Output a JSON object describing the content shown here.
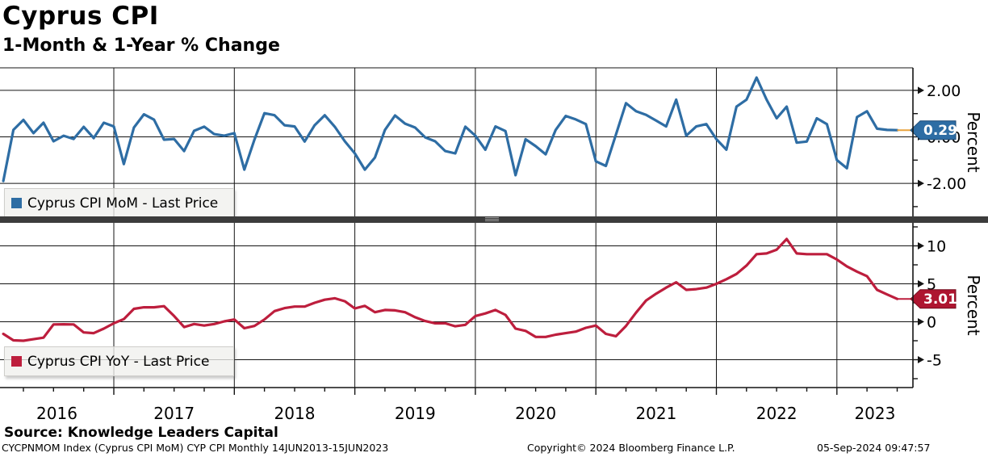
{
  "header": {
    "title": "Cyprus CPI",
    "subtitle": "1-Month & 1-Year % Change"
  },
  "source_line": "Source: Knowledge Leaders Capital",
  "footer": {
    "left": "CYCPNMOM Index (Cyprus CPI MoM) CYP CPI  Monthly 14JUN2013-15JUN2023",
    "center": "Copyright© 2024 Bloomberg Finance L.P.",
    "right": "05-Sep-2024 09:47:57"
  },
  "axis": {
    "years": [
      "2016",
      "2017",
      "2018",
      "2019",
      "2020",
      "2021",
      "2022",
      "2023"
    ]
  },
  "chart_data": [
    {
      "type": "line",
      "title": "Cyprus CPI MoM - Last Price",
      "series_name": "Cyprus CPI MoM",
      "color": "#2e6da4",
      "badge_color": "#2e6da4",
      "badge_border": "#1c4a75",
      "connector_color": "#e8a33d",
      "last_price": 0.29,
      "last_price_label": "0.29",
      "ylabel": "Percent",
      "ylim": [
        -3.42,
        2.97
      ],
      "ytick_values": [
        2,
        0,
        -2
      ],
      "ytick_labels": [
        "2.00",
        "0.00",
        "-2.00"
      ],
      "yticks_minor": [
        1,
        -1,
        -3
      ],
      "x_start": "2016-01",
      "x_end": "2023-06",
      "x_freq": "monthly",
      "values": [
        -1.9,
        0.3,
        0.73,
        0.16,
        0.61,
        -0.19,
        0.05,
        -0.09,
        0.43,
        -0.05,
        0.61,
        0.45,
        -1.17,
        0.4,
        0.97,
        0.74,
        -0.12,
        -0.09,
        -0.61,
        0.26,
        0.44,
        0.12,
        0.05,
        0.16,
        -1.41,
        -0.12,
        1.02,
        0.93,
        0.5,
        0.45,
        -0.2,
        0.5,
        0.93,
        0.44,
        -0.19,
        -0.71,
        -1.41,
        -0.89,
        0.3,
        0.92,
        0.57,
        0.4,
        -0.02,
        -0.19,
        -0.61,
        -0.71,
        0.44,
        0.05,
        -0.55,
        0.45,
        0.25,
        -1.65,
        -0.1,
        -0.4,
        -0.75,
        0.3,
        0.9,
        0.75,
        0.55,
        -1.05,
        -1.25,
        0.1,
        1.45,
        1.1,
        0.95,
        0.7,
        0.45,
        1.6,
        0.05,
        0.45,
        0.55,
        -0.1,
        -0.55,
        1.3,
        1.6,
        2.55,
        1.6,
        0.8,
        1.3,
        -0.25,
        -0.2,
        0.8,
        0.55,
        -1.0,
        -1.35,
        0.85,
        1.1,
        0.35,
        0.3,
        0.29
      ]
    },
    {
      "type": "line",
      "title": "Cyprus CPI YoY - Last Price",
      "series_name": "Cyprus CPI YoY",
      "color": "#bd1e3d",
      "badge_color": "#ae1530",
      "badge_border": "#730d1f",
      "connector_color": "#bd1e3d",
      "last_price": 3.01,
      "last_price_label": "3.01",
      "ylabel": "Percent",
      "ylim": [
        -8.67,
        13.03
      ],
      "ytick_values": [
        10,
        5,
        0,
        -5
      ],
      "ytick_labels": [
        "10",
        "5",
        "0",
        "-5"
      ],
      "yticks_minor": [
        12.5,
        7.5,
        2.5,
        -2.5,
        -7.5
      ],
      "x_start": "2016-01",
      "x_end": "2023-06",
      "x_freq": "monthly",
      "values": [
        -1.6,
        -2.45,
        -2.5,
        -2.3,
        -2.1,
        -0.35,
        -0.33,
        -0.35,
        -1.4,
        -1.5,
        -0.9,
        -0.2,
        0.35,
        1.7,
        1.9,
        1.9,
        2.05,
        0.75,
        -0.7,
        -0.3,
        -0.5,
        -0.3,
        0.05,
        0.3,
        -0.85,
        -0.55,
        0.3,
        1.4,
        1.8,
        2.0,
        2.0,
        2.5,
        2.9,
        3.1,
        2.7,
        1.75,
        2.1,
        1.25,
        1.55,
        1.5,
        1.25,
        0.6,
        0.1,
        -0.2,
        -0.2,
        -0.6,
        -0.4,
        0.75,
        1.1,
        1.55,
        0.9,
        -0.9,
        -1.2,
        -2.0,
        -2.0,
        -1.7,
        -1.5,
        -1.3,
        -0.8,
        -0.5,
        -1.6,
        -1.9,
        -0.55,
        1.2,
        2.8,
        3.7,
        4.5,
        5.2,
        4.2,
        4.3,
        4.5,
        5.0,
        5.6,
        6.3,
        7.4,
        8.9,
        9.0,
        9.5,
        10.9,
        9.0,
        8.9,
        8.9,
        8.9,
        8.2,
        7.3,
        6.6,
        6.0,
        4.2,
        3.6,
        3.01
      ]
    }
  ]
}
